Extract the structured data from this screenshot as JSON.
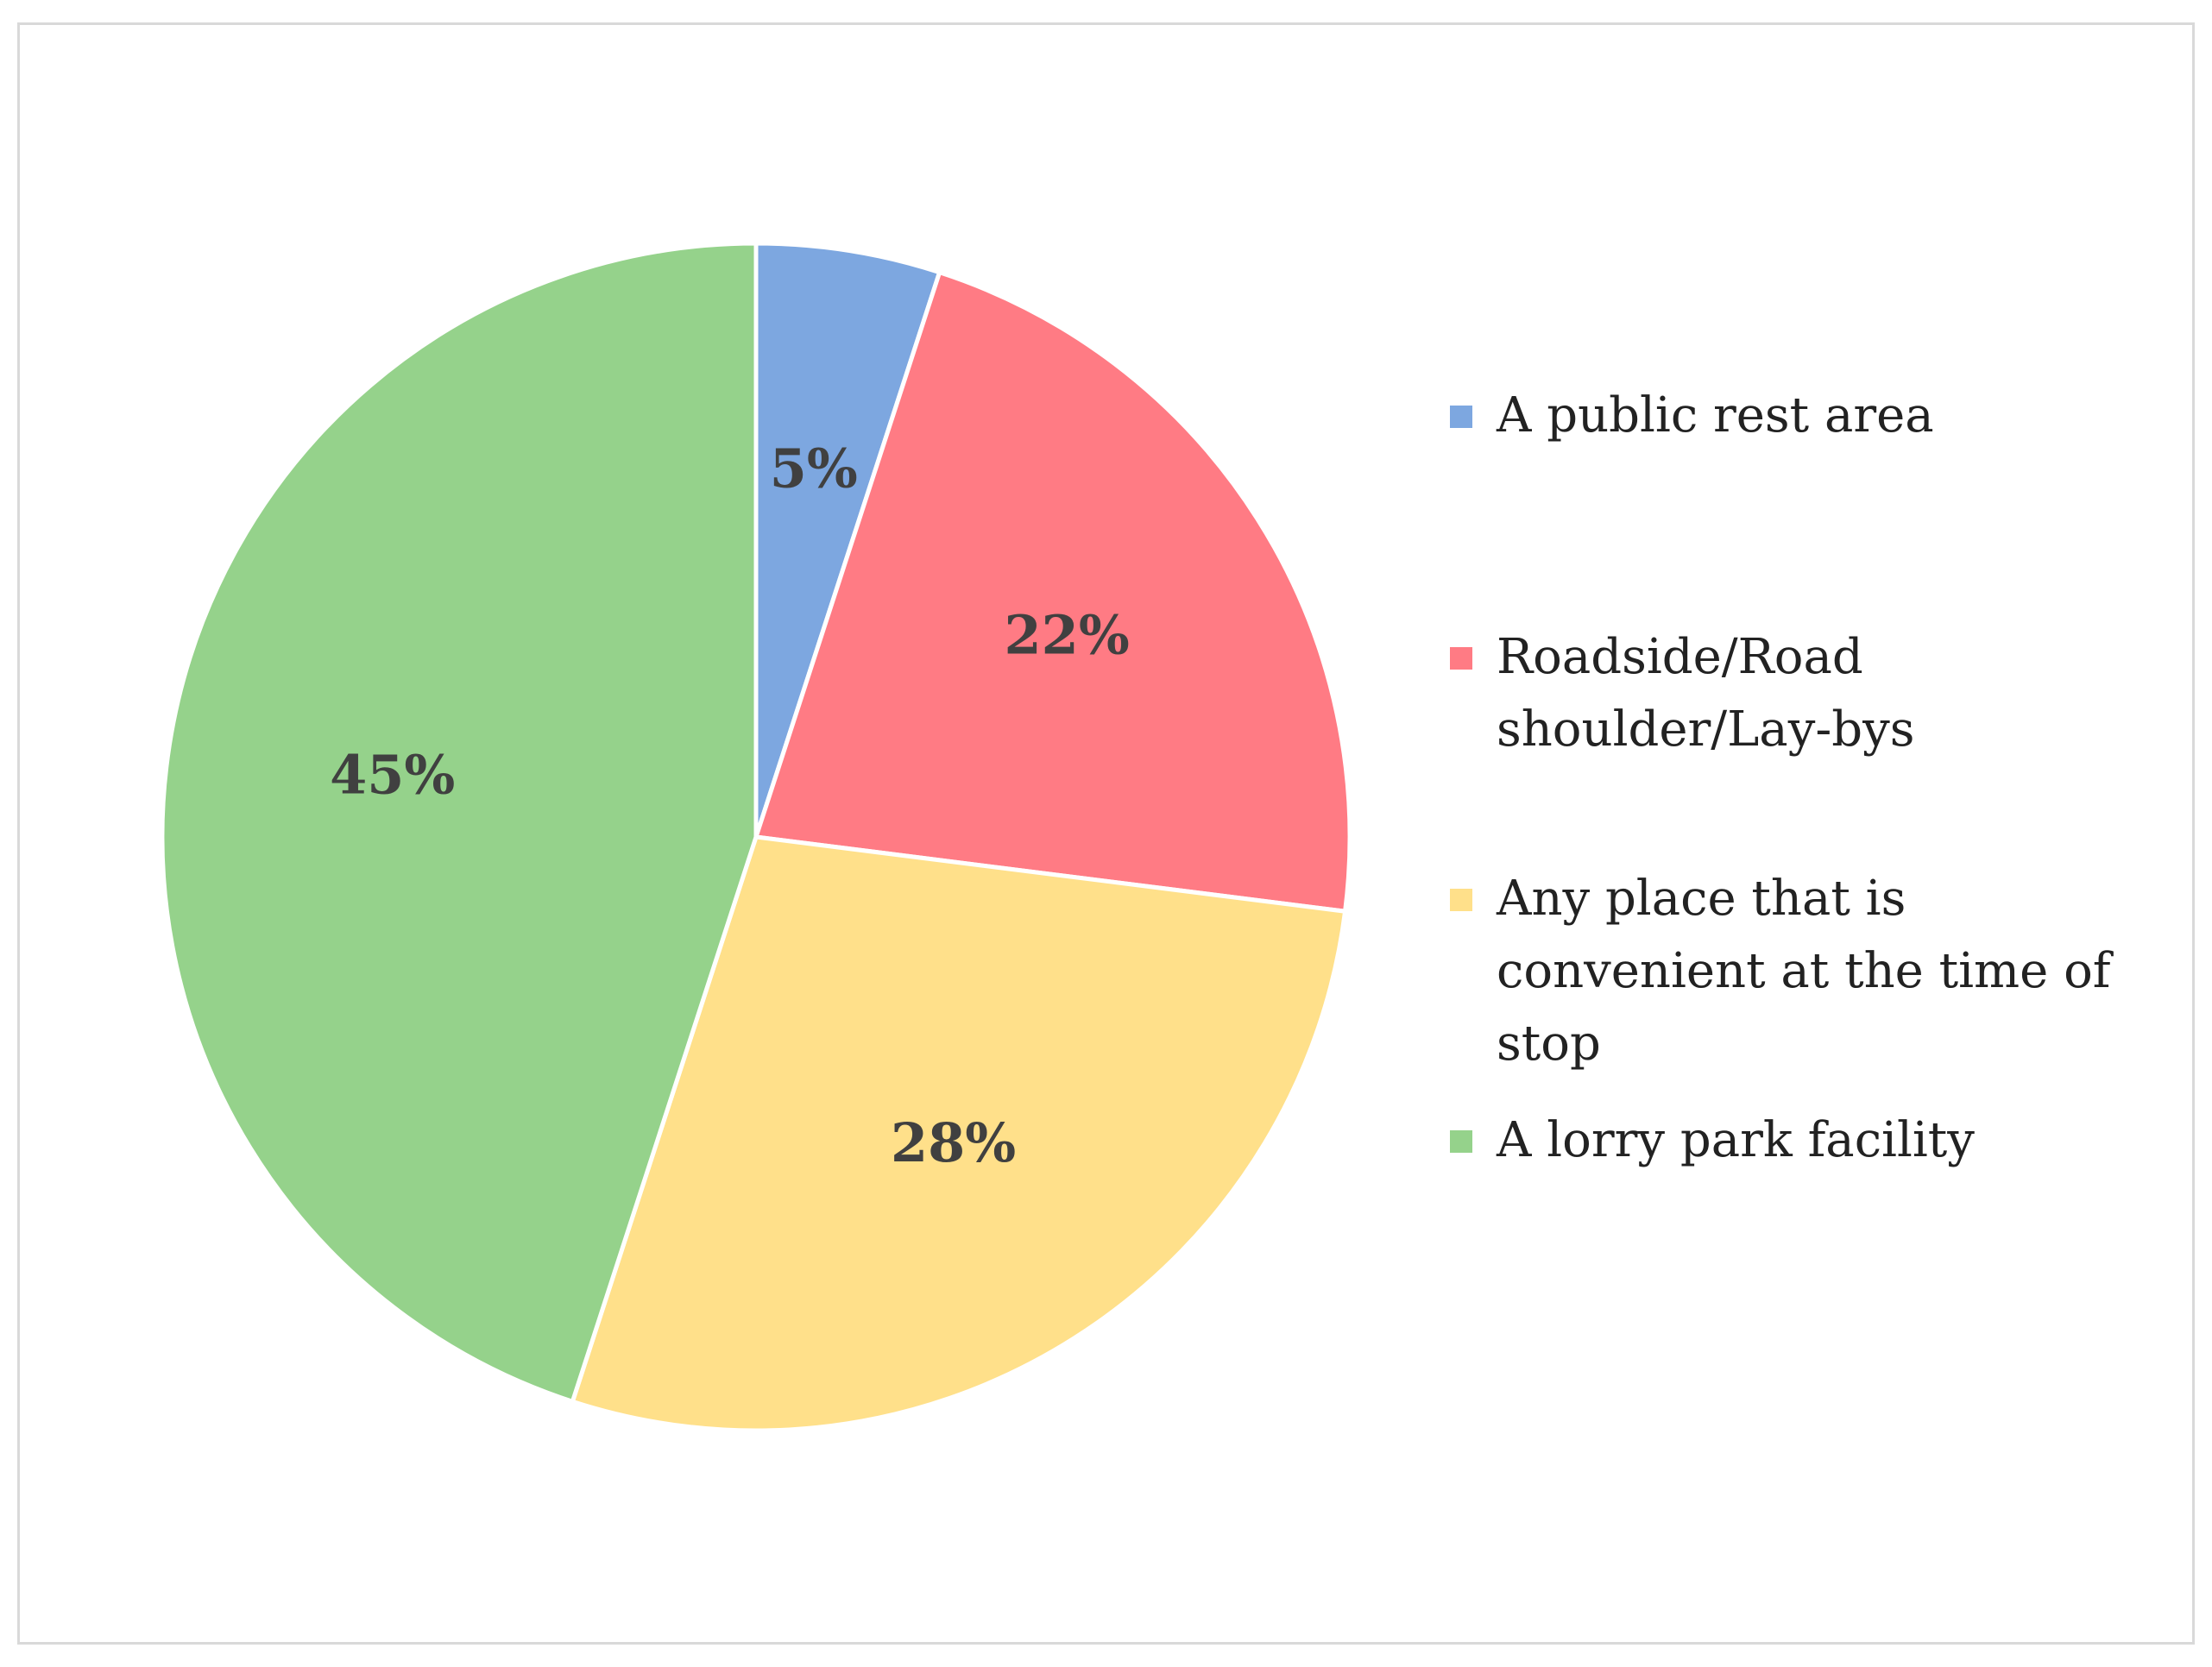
{
  "chart_data": {
    "type": "pie",
    "title": "",
    "slices": [
      {
        "label": "A public rest area",
        "value": 5,
        "display": "5%",
        "color": "#7da7e0"
      },
      {
        "label": "Roadside/Road shoulder/Lay-bys",
        "value": 22,
        "display": "22%",
        "color": "#ff7b84"
      },
      {
        "label": "Any place that is convenient at the time of stop",
        "value": 28,
        "display": "28%",
        "color": "#ffe08a"
      },
      {
        "label": "A lorry park facility",
        "value": 45,
        "display": "45%",
        "color": "#95d28b"
      }
    ],
    "start_angle_deg": 0,
    "direction": "clockwise",
    "legend_position": "right"
  },
  "legend": {
    "items": [
      {
        "label": "A public rest area"
      },
      {
        "label": "Roadside/Road shoulder/Lay-bys"
      },
      {
        "label": "Any place that is convenient at the time of stop"
      },
      {
        "label": "A lorry park facility"
      }
    ]
  }
}
